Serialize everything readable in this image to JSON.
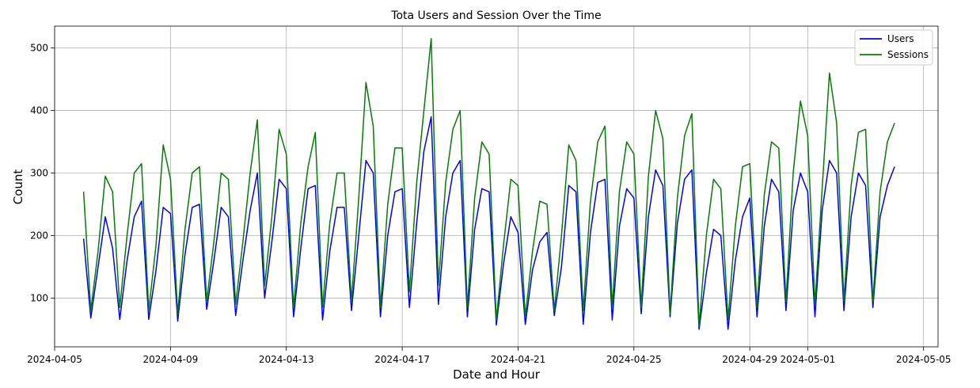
{
  "chart_data": {
    "type": "line",
    "title": "Tota Users and Session Over the Time",
    "xlabel": "Date and Hour",
    "ylabel": "Count",
    "x_range": [
      "2024-04-05T00:00",
      "2024-05-05T12:00"
    ],
    "ylim": [
      22,
      535
    ],
    "grid": true,
    "legend_position": "top-right",
    "x_ticks": [
      "2024-04-05",
      "2024-04-09",
      "2024-04-13",
      "2024-04-17",
      "2024-04-21",
      "2024-04-25",
      "2024-04-29",
      "2024-05-01",
      "2024-05-05"
    ],
    "y_ticks": [
      100,
      200,
      300,
      400,
      500
    ],
    "series": [
      {
        "name": "Users",
        "color": "#0000ff",
        "x": [
          "2024-04-06T00:00",
          "2024-04-06T06:00",
          "2024-04-06T12:00",
          "2024-04-06T18:00",
          "2024-04-07T00:00",
          "2024-04-07T06:00",
          "2024-04-07T12:00",
          "2024-04-07T18:00",
          "2024-04-08T00:00",
          "2024-04-08T06:00",
          "2024-04-08T12:00",
          "2024-04-08T18:00",
          "2024-04-09T00:00",
          "2024-04-09T06:00",
          "2024-04-09T12:00",
          "2024-04-09T18:00",
          "2024-04-10T00:00",
          "2024-04-10T06:00",
          "2024-04-10T12:00",
          "2024-04-10T18:00",
          "2024-04-11T00:00",
          "2024-04-11T06:00",
          "2024-04-11T12:00",
          "2024-04-11T18:00",
          "2024-04-12T00:00",
          "2024-04-12T06:00",
          "2024-04-12T12:00",
          "2024-04-12T18:00",
          "2024-04-13T00:00",
          "2024-04-13T06:00",
          "2024-04-13T12:00",
          "2024-04-13T18:00",
          "2024-04-14T00:00",
          "2024-04-14T06:00",
          "2024-04-14T12:00",
          "2024-04-14T18:00",
          "2024-04-15T00:00",
          "2024-04-15T06:00",
          "2024-04-15T12:00",
          "2024-04-15T18:00",
          "2024-04-16T00:00",
          "2024-04-16T06:00",
          "2024-04-16T12:00",
          "2024-04-16T18:00",
          "2024-04-17T00:00",
          "2024-04-17T06:00",
          "2024-04-17T12:00",
          "2024-04-17T18:00",
          "2024-04-18T00:00",
          "2024-04-18T06:00",
          "2024-04-18T12:00",
          "2024-04-18T18:00",
          "2024-04-19T00:00",
          "2024-04-19T06:00",
          "2024-04-19T12:00",
          "2024-04-19T18:00",
          "2024-04-20T00:00",
          "2024-04-20T06:00",
          "2024-04-20T12:00",
          "2024-04-20T18:00",
          "2024-04-21T00:00",
          "2024-04-21T06:00",
          "2024-04-21T12:00",
          "2024-04-21T18:00",
          "2024-04-22T00:00",
          "2024-04-22T06:00",
          "2024-04-22T12:00",
          "2024-04-22T18:00",
          "2024-04-23T00:00",
          "2024-04-23T06:00",
          "2024-04-23T12:00",
          "2024-04-23T18:00",
          "2024-04-24T00:00",
          "2024-04-24T06:00",
          "2024-04-24T12:00",
          "2024-04-24T18:00",
          "2024-04-25T00:00",
          "2024-04-25T06:00",
          "2024-04-25T12:00",
          "2024-04-25T18:00",
          "2024-04-26T00:00",
          "2024-04-26T06:00",
          "2024-04-26T12:00",
          "2024-04-26T18:00",
          "2024-04-27T00:00",
          "2024-04-27T06:00",
          "2024-04-27T12:00",
          "2024-04-27T18:00",
          "2024-04-28T00:00",
          "2024-04-28T06:00",
          "2024-04-28T12:00",
          "2024-04-28T18:00",
          "2024-04-29T00:00",
          "2024-04-29T06:00",
          "2024-04-29T12:00",
          "2024-04-29T18:00",
          "2024-04-30T00:00",
          "2024-04-30T06:00",
          "2024-04-30T12:00",
          "2024-04-30T18:00",
          "2024-05-01T00:00",
          "2024-05-01T06:00",
          "2024-05-01T12:00",
          "2024-05-01T18:00",
          "2024-05-02T00:00",
          "2024-05-02T06:00",
          "2024-05-02T12:00",
          "2024-05-02T18:00",
          "2024-05-03T00:00",
          "2024-05-03T06:00",
          "2024-05-03T12:00",
          "2024-05-03T18:00",
          "2024-05-04T00:00"
        ],
        "y": [
          195,
          68,
          150,
          230,
          180,
          66,
          160,
          230,
          255,
          66,
          145,
          245,
          235,
          63,
          170,
          245,
          250,
          82,
          160,
          245,
          230,
          72,
          160,
          240,
          300,
          100,
          190,
          290,
          275,
          70,
          180,
          275,
          280,
          65,
          175,
          245,
          245,
          80,
          200,
          320,
          300,
          70,
          200,
          270,
          275,
          85,
          220,
          335,
          390,
          90,
          230,
          300,
          320,
          70,
          210,
          275,
          270,
          57,
          155,
          230,
          205,
          58,
          145,
          190,
          205,
          72,
          150,
          280,
          270,
          58,
          205,
          285,
          290,
          65,
          215,
          275,
          260,
          75,
          230,
          305,
          280,
          70,
          220,
          290,
          305,
          50,
          140,
          210,
          200,
          50,
          160,
          230,
          260,
          70,
          215,
          290,
          270,
          80,
          240,
          300,
          270,
          70,
          240,
          320,
          300,
          80,
          230,
          300,
          280,
          85,
          230,
          280,
          310
        ]
      },
      {
        "name": "Sessions",
        "color": "#008000",
        "x": [
          "2024-04-06T00:00",
          "2024-04-06T06:00",
          "2024-04-06T12:00",
          "2024-04-06T18:00",
          "2024-04-07T00:00",
          "2024-04-07T06:00",
          "2024-04-07T12:00",
          "2024-04-07T18:00",
          "2024-04-08T00:00",
          "2024-04-08T06:00",
          "2024-04-08T12:00",
          "2024-04-08T18:00",
          "2024-04-09T00:00",
          "2024-04-09T06:00",
          "2024-04-09T12:00",
          "2024-04-09T18:00",
          "2024-04-10T00:00",
          "2024-04-10T06:00",
          "2024-04-10T12:00",
          "2024-04-10T18:00",
          "2024-04-11T00:00",
          "2024-04-11T06:00",
          "2024-04-11T12:00",
          "2024-04-11T18:00",
          "2024-04-12T00:00",
          "2024-04-12T06:00",
          "2024-04-12T12:00",
          "2024-04-12T18:00",
          "2024-04-13T00:00",
          "2024-04-13T06:00",
          "2024-04-13T12:00",
          "2024-04-13T18:00",
          "2024-04-14T00:00",
          "2024-04-14T06:00",
          "2024-04-14T12:00",
          "2024-04-14T18:00",
          "2024-04-15T00:00",
          "2024-04-15T06:00",
          "2024-04-15T12:00",
          "2024-04-15T18:00",
          "2024-04-16T00:00",
          "2024-04-16T06:00",
          "2024-04-16T12:00",
          "2024-04-16T18:00",
          "2024-04-17T00:00",
          "2024-04-17T06:00",
          "2024-04-17T12:00",
          "2024-04-17T18:00",
          "2024-04-18T00:00",
          "2024-04-18T06:00",
          "2024-04-18T12:00",
          "2024-04-18T18:00",
          "2024-04-19T00:00",
          "2024-04-19T06:00",
          "2024-04-19T12:00",
          "2024-04-19T18:00",
          "2024-04-20T00:00",
          "2024-04-20T06:00",
          "2024-04-20T12:00",
          "2024-04-20T18:00",
          "2024-04-21T00:00",
          "2024-04-21T06:00",
          "2024-04-21T12:00",
          "2024-04-21T18:00",
          "2024-04-22T00:00",
          "2024-04-22T06:00",
          "2024-04-22T12:00",
          "2024-04-22T18:00",
          "2024-04-23T00:00",
          "2024-04-23T06:00",
          "2024-04-23T12:00",
          "2024-04-23T18:00",
          "2024-04-24T00:00",
          "2024-04-24T06:00",
          "2024-04-24T12:00",
          "2024-04-24T18:00",
          "2024-04-25T00:00",
          "2024-04-25T06:00",
          "2024-04-25T12:00",
          "2024-04-25T18:00",
          "2024-04-26T00:00",
          "2024-04-26T06:00",
          "2024-04-26T12:00",
          "2024-04-26T18:00",
          "2024-04-27T00:00",
          "2024-04-27T06:00",
          "2024-04-27T12:00",
          "2024-04-27T18:00",
          "2024-04-28T00:00",
          "2024-04-28T06:00",
          "2024-04-28T12:00",
          "2024-04-28T18:00",
          "2024-04-29T00:00",
          "2024-04-29T06:00",
          "2024-04-29T12:00",
          "2024-04-29T18:00",
          "2024-04-30T00:00",
          "2024-04-30T06:00",
          "2024-04-30T12:00",
          "2024-04-30T18:00",
          "2024-05-01T00:00",
          "2024-05-01T06:00",
          "2024-05-01T12:00",
          "2024-05-01T18:00",
          "2024-05-02T00:00",
          "2024-05-02T06:00",
          "2024-05-02T12:00",
          "2024-05-02T18:00",
          "2024-05-03T00:00",
          "2024-05-03T06:00",
          "2024-05-03T12:00",
          "2024-05-03T18:00",
          "2024-05-04T00:00"
        ],
        "y": [
          270,
          80,
          175,
          295,
          270,
          85,
          200,
          300,
          315,
          80,
          185,
          345,
          290,
          75,
          210,
          300,
          310,
          95,
          190,
          300,
          290,
          90,
          190,
          300,
          385,
          120,
          230,
          370,
          330,
          85,
          220,
          310,
          365,
          85,
          220,
          300,
          300,
          95,
          260,
          445,
          375,
          85,
          250,
          340,
          340,
          110,
          285,
          400,
          515,
          120,
          285,
          370,
          400,
          85,
          260,
          350,
          330,
          65,
          185,
          290,
          280,
          70,
          175,
          255,
          250,
          80,
          200,
          345,
          320,
          80,
          255,
          350,
          375,
          85,
          270,
          350,
          330,
          85,
          295,
          400,
          355,
          75,
          260,
          360,
          395,
          55,
          200,
          290,
          275,
          65,
          215,
          310,
          315,
          85,
          265,
          350,
          340,
          95,
          300,
          415,
          360,
          90,
          275,
          460,
          380,
          95,
          280,
          365,
          370,
          95,
          270,
          350,
          380
        ]
      }
    ]
  }
}
